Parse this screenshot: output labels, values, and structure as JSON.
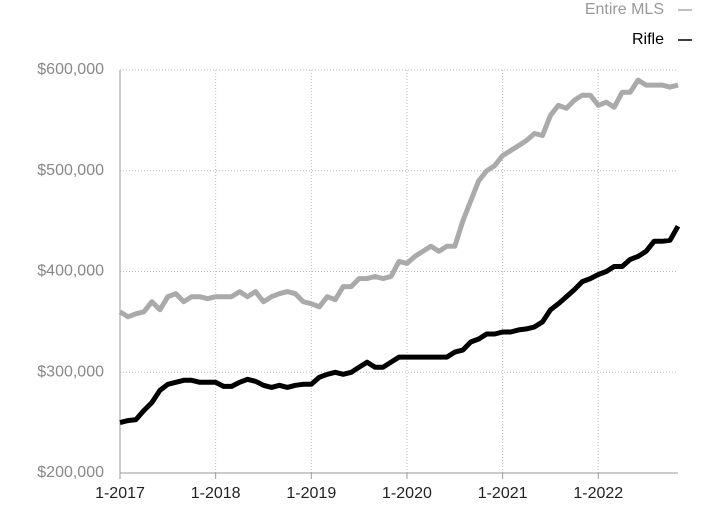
{
  "chart_data": {
    "type": "line",
    "categories": [
      "1-2017",
      null,
      null,
      null,
      null,
      null,
      null,
      null,
      null,
      null,
      null,
      null,
      "1-2018",
      null,
      null,
      null,
      null,
      null,
      null,
      null,
      null,
      null,
      null,
      null,
      "1-2019",
      null,
      null,
      null,
      null,
      null,
      null,
      null,
      null,
      null,
      null,
      null,
      "1-2020",
      null,
      null,
      null,
      null,
      null,
      null,
      null,
      null,
      null,
      null,
      null,
      "1-2021",
      null,
      null,
      null,
      null,
      null,
      null,
      null,
      null,
      null,
      null,
      null,
      "1-2022",
      null,
      null,
      null,
      null,
      null,
      null,
      null,
      null,
      null,
      null
    ],
    "series": [
      {
        "name": "Entire MLS",
        "color": "#aaaaaa",
        "values": [
          360000,
          355000,
          358000,
          360000,
          370000,
          362000,
          375000,
          378000,
          370000,
          375000,
          375000,
          373000,
          375000,
          375000,
          375000,
          380000,
          375000,
          380000,
          370000,
          375000,
          378000,
          380000,
          378000,
          370000,
          368000,
          365000,
          375000,
          372000,
          385000,
          385000,
          393000,
          393000,
          395000,
          393000,
          395000,
          410000,
          408000,
          415000,
          420000,
          425000,
          420000,
          425000,
          425000,
          450000,
          470000,
          490000,
          500000,
          505000,
          515000,
          520000,
          525000,
          530000,
          537000,
          535000,
          555000,
          565000,
          562000,
          570000,
          575000,
          575000,
          565000,
          568000,
          563000,
          578000,
          578000,
          590000,
          585000,
          585000,
          585000,
          583000,
          585000
        ]
      },
      {
        "name": "Rifle",
        "color": "#000000",
        "values": [
          250000,
          252000,
          253000,
          262000,
          270000,
          282000,
          288000,
          290000,
          292000,
          292000,
          290000,
          290000,
          290000,
          286000,
          286000,
          290000,
          293000,
          291000,
          287000,
          285000,
          287000,
          285000,
          287000,
          288000,
          288000,
          295000,
          298000,
          300000,
          298000,
          300000,
          305000,
          310000,
          305000,
          305000,
          310000,
          315000,
          315000,
          315000,
          315000,
          315000,
          315000,
          315000,
          320000,
          322000,
          330000,
          333000,
          338000,
          338000,
          340000,
          340000,
          342000,
          343000,
          345000,
          350000,
          362000,
          368000,
          375000,
          382000,
          390000,
          393000,
          397000,
          400000,
          405000,
          405000,
          412000,
          415000,
          420000,
          430000,
          430000,
          431000,
          445000
        ]
      }
    ],
    "ylim": [
      200000,
      600000
    ],
    "yticks": [
      {
        "value": 200000,
        "label": "$200,000"
      },
      {
        "value": 300000,
        "label": "$300,000"
      },
      {
        "value": 400000,
        "label": "$400,000"
      },
      {
        "value": 500000,
        "label": "$500,000"
      },
      {
        "value": 600000,
        "label": "$600,000"
      }
    ],
    "grid": true
  }
}
